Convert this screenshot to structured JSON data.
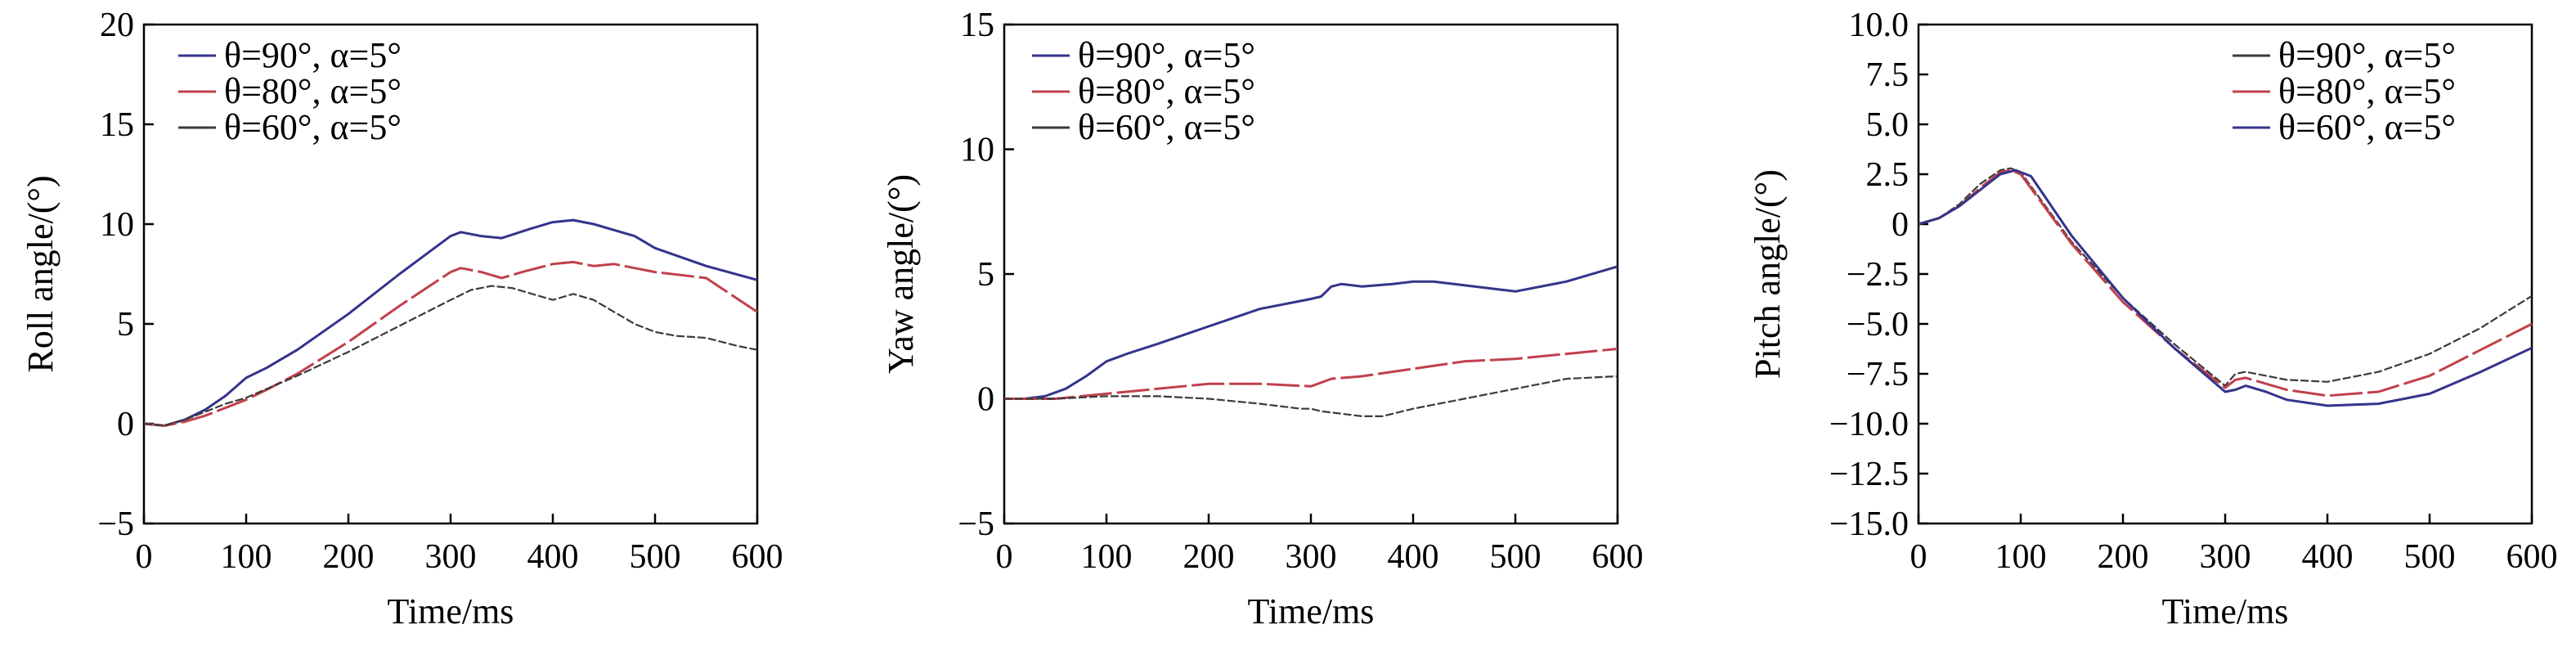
{
  "chart_data": [
    {
      "type": "line",
      "xlabel": "Time/ms",
      "ylabel": "Roll angle/(°)",
      "xlim": [
        0,
        600
      ],
      "ylim": [
        -5,
        20
      ],
      "xticks": [
        "0",
        "100",
        "200",
        "300",
        "400",
        "500",
        "600"
      ],
      "yticks": [
        "−5",
        "0",
        "5",
        "10",
        "15",
        "20"
      ],
      "grid": false,
      "legend_position": "top-left",
      "series": [
        {
          "name": "θ=90°, α=5°",
          "color": "#34348c",
          "x": [
            0,
            20,
            40,
            60,
            80,
            100,
            120,
            150,
            200,
            250,
            300,
            310,
            330,
            350,
            380,
            400,
            420,
            440,
            460,
            480,
            500,
            550,
            600
          ],
          "y": [
            0,
            -0.1,
            0.2,
            0.7,
            1.4,
            2.3,
            2.8,
            3.7,
            5.5,
            7.5,
            9.4,
            9.6,
            9.4,
            9.3,
            9.8,
            10.1,
            10.2,
            10.0,
            9.7,
            9.4,
            8.8,
            7.9,
            7.2
          ]
        },
        {
          "name": "θ=80°, α=5°",
          "color": "#c0404c",
          "x": [
            0,
            20,
            40,
            60,
            80,
            100,
            120,
            150,
            200,
            250,
            300,
            310,
            330,
            350,
            370,
            400,
            420,
            440,
            460,
            480,
            500,
            550,
            600
          ],
          "y": [
            0,
            -0.1,
            0.1,
            0.4,
            0.8,
            1.2,
            1.7,
            2.5,
            4.1,
            5.9,
            7.6,
            7.8,
            7.6,
            7.3,
            7.6,
            8.0,
            8.1,
            7.9,
            8.0,
            7.8,
            7.6,
            7.3,
            5.6
          ]
        },
        {
          "name": "θ=60°, α=5°",
          "color": "#3a3a3a",
          "x": [
            0,
            20,
            40,
            60,
            80,
            100,
            150,
            200,
            250,
            300,
            320,
            340,
            360,
            380,
            400,
            420,
            440,
            460,
            480,
            500,
            520,
            550,
            580,
            600
          ],
          "y": [
            0,
            -0.1,
            0.2,
            0.6,
            1.0,
            1.3,
            2.4,
            3.6,
            4.9,
            6.2,
            6.7,
            6.9,
            6.8,
            6.5,
            6.2,
            6.5,
            6.2,
            5.6,
            5.0,
            4.6,
            4.4,
            4.3,
            3.9,
            3.7
          ]
        }
      ]
    },
    {
      "type": "line",
      "xlabel": "Time/ms",
      "ylabel": "Yaw angle/(°)",
      "xlim": [
        0,
        600
      ],
      "ylim": [
        -5,
        15
      ],
      "xticks": [
        "0",
        "100",
        "200",
        "300",
        "400",
        "500",
        "600"
      ],
      "yticks": [
        "−5",
        "0",
        "5",
        "10",
        "15"
      ],
      "grid": false,
      "legend_position": "top-left",
      "series": [
        {
          "name": "θ=90°, α=5°",
          "color": "#34348c",
          "x": [
            0,
            20,
            40,
            60,
            80,
            100,
            120,
            150,
            200,
            250,
            300,
            310,
            320,
            330,
            350,
            380,
            400,
            420,
            440,
            460,
            480,
            500,
            550,
            600
          ],
          "y": [
            0,
            0,
            0.1,
            0.4,
            0.9,
            1.5,
            1.8,
            2.2,
            2.9,
            3.6,
            4.0,
            4.1,
            4.5,
            4.6,
            4.5,
            4.6,
            4.7,
            4.7,
            4.6,
            4.5,
            4.4,
            4.3,
            4.7,
            5.3
          ]
        },
        {
          "name": "θ=80°, α=5°",
          "color": "#c0404c",
          "x": [
            0,
            50,
            100,
            150,
            200,
            250,
            300,
            320,
            350,
            400,
            450,
            500,
            550,
            600
          ],
          "y": [
            0,
            0,
            0.2,
            0.4,
            0.6,
            0.6,
            0.5,
            0.8,
            0.9,
            1.2,
            1.5,
            1.6,
            1.8,
            2.0
          ]
        },
        {
          "name": "θ=60°, α=5°",
          "color": "#3a3a3a",
          "x": [
            0,
            50,
            100,
            150,
            200,
            250,
            290,
            300,
            310,
            330,
            350,
            370,
            400,
            450,
            500,
            550,
            600
          ],
          "y": [
            0,
            0,
            0.1,
            0.1,
            0.0,
            -0.2,
            -0.4,
            -0.4,
            -0.5,
            -0.6,
            -0.7,
            -0.7,
            -0.4,
            0.0,
            0.4,
            0.8,
            0.9
          ]
        }
      ]
    },
    {
      "type": "line",
      "xlabel": "Time/ms",
      "ylabel": "Pitch angle/(°)",
      "xlim": [
        0,
        600
      ],
      "ylim": [
        -15,
        10
      ],
      "xticks": [
        "0",
        "100",
        "200",
        "300",
        "400",
        "500",
        "600"
      ],
      "yticks": [
        "−15.0",
        "−12.5",
        "−10.0",
        "−7.5",
        "−5.0",
        "−2.5",
        "0",
        "2.5",
        "5.0",
        "7.5",
        "10.0"
      ],
      "grid": false,
      "legend_position": "top-right",
      "series": [
        {
          "name": "θ=90°, α=5°",
          "color": "#3a3a3a",
          "x": [
            0,
            20,
            40,
            60,
            80,
            90,
            100,
            150,
            200,
            250,
            300,
            310,
            320,
            340,
            360,
            400,
            450,
            500,
            550,
            600
          ],
          "y": [
            0,
            0.3,
            1.0,
            2.0,
            2.7,
            2.8,
            2.6,
            -0.9,
            -3.7,
            -6.0,
            -8.1,
            -7.5,
            -7.4,
            -7.6,
            -7.8,
            -7.9,
            -7.4,
            -6.5,
            -5.2,
            -3.6
          ]
        },
        {
          "name": "θ=80°, α=5°",
          "color": "#c0404c",
          "x": [
            0,
            20,
            40,
            60,
            80,
            90,
            100,
            150,
            200,
            250,
            300,
            310,
            320,
            340,
            360,
            400,
            450,
            500,
            550,
            600
          ],
          "y": [
            0,
            0.3,
            0.9,
            1.8,
            2.6,
            2.7,
            2.5,
            -1.0,
            -3.9,
            -6.2,
            -8.2,
            -7.8,
            -7.7,
            -8.0,
            -8.3,
            -8.6,
            -8.4,
            -7.6,
            -6.3,
            -5.0
          ]
        },
        {
          "name": "θ=60°, α=5°",
          "color": "#34348c",
          "x": [
            0,
            20,
            40,
            60,
            80,
            95,
            110,
            150,
            200,
            250,
            300,
            310,
            320,
            340,
            360,
            400,
            450,
            500,
            550,
            600
          ],
          "y": [
            0,
            0.3,
            0.9,
            1.7,
            2.5,
            2.7,
            2.4,
            -0.6,
            -3.7,
            -6.2,
            -8.4,
            -8.3,
            -8.1,
            -8.4,
            -8.8,
            -9.1,
            -9.0,
            -8.5,
            -7.4,
            -6.2
          ]
        }
      ]
    }
  ]
}
